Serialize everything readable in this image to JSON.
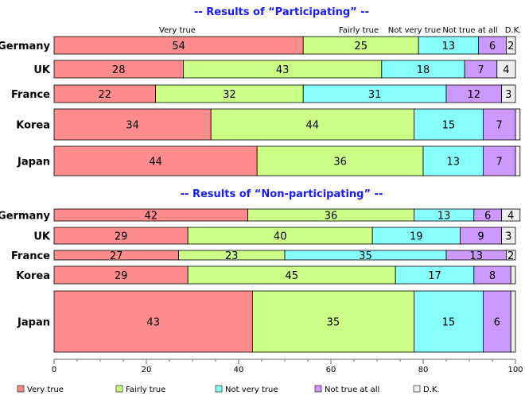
{
  "chart_data": [
    {
      "type": "bar",
      "orientation": "horizontal",
      "stacked": true,
      "title": "-- Results of “Participating” --",
      "categories": [
        "Germany",
        "UK",
        "France",
        "Korea",
        "Japan"
      ],
      "series": [
        {
          "name": "Very true",
          "color": "#ff8c8c",
          "values": [
            54,
            28,
            22,
            34,
            44
          ]
        },
        {
          "name": "Fairly true",
          "color": "#ccff88",
          "values": [
            25,
            43,
            32,
            44,
            36
          ]
        },
        {
          "name": "Not very true",
          "color": "#88ffff",
          "values": [
            13,
            18,
            31,
            15,
            13
          ]
        },
        {
          "name": "Not true at all",
          "color": "#cc99ff",
          "values": [
            6,
            7,
            12,
            7,
            7
          ]
        },
        {
          "name": "D.K.",
          "color": "#eeeeee",
          "values": [
            2,
            4,
            3,
            1,
            1
          ]
        }
      ],
      "data_labels": [
        [
          "54",
          "25",
          "13",
          "6",
          "2"
        ],
        [
          "28",
          "43",
          "18",
          "7",
          "4"
        ],
        [
          "22",
          "32",
          "31",
          "12",
          "3"
        ],
        [
          "34",
          "44",
          "15",
          "7",
          ""
        ],
        [
          "44",
          "36",
          "13",
          "7",
          ""
        ]
      ],
      "header_labels": [
        "Very true",
        "Fairly true",
        "Not very true",
        "Not true at all",
        "D.K."
      ]
    },
    {
      "type": "bar",
      "orientation": "horizontal",
      "stacked": true,
      "title": "-- Results of “Non-participating” --",
      "categories": [
        "Germany",
        "UK",
        "France",
        "Korea",
        "Japan"
      ],
      "series": [
        {
          "name": "Very true",
          "color": "#ff8c8c",
          "values": [
            42,
            29,
            27,
            29,
            43
          ]
        },
        {
          "name": "Fairly true",
          "color": "#ccff88",
          "values": [
            36,
            40,
            23,
            45,
            35
          ]
        },
        {
          "name": "Not very true",
          "color": "#88ffff",
          "values": [
            13,
            19,
            35,
            17,
            15
          ]
        },
        {
          "name": "Not true at all",
          "color": "#cc99ff",
          "values": [
            6,
            9,
            13,
            8,
            6
          ]
        },
        {
          "name": "D.K.",
          "color": "#eeeeee",
          "values": [
            4,
            3,
            2,
            1,
            1
          ]
        }
      ],
      "data_labels": [
        [
          "42",
          "36",
          "13",
          "6",
          "4"
        ],
        [
          "29",
          "40",
          "19",
          "9",
          "3"
        ],
        [
          "27",
          "23",
          "35",
          "13",
          "2"
        ],
        [
          "29",
          "45",
          "17",
          "8",
          ""
        ],
        [
          "43",
          "35",
          "15",
          "6",
          ""
        ]
      ]
    }
  ],
  "x_axis": {
    "ticks": [
      "0",
      "20",
      "40",
      "60",
      "80",
      "100"
    ],
    "range": [
      0,
      100
    ]
  },
  "legend": {
    "placement": "bottom",
    "items": [
      {
        "label": "Very true",
        "color": "#ff8c8c"
      },
      {
        "label": "Fairly true",
        "color": "#ccff88"
      },
      {
        "label": "Not very true",
        "color": "#88ffff"
      },
      {
        "label": "Not true at all",
        "color": "#cc99ff"
      },
      {
        "label": "D.K.",
        "color": "#eeeeee"
      }
    ]
  }
}
